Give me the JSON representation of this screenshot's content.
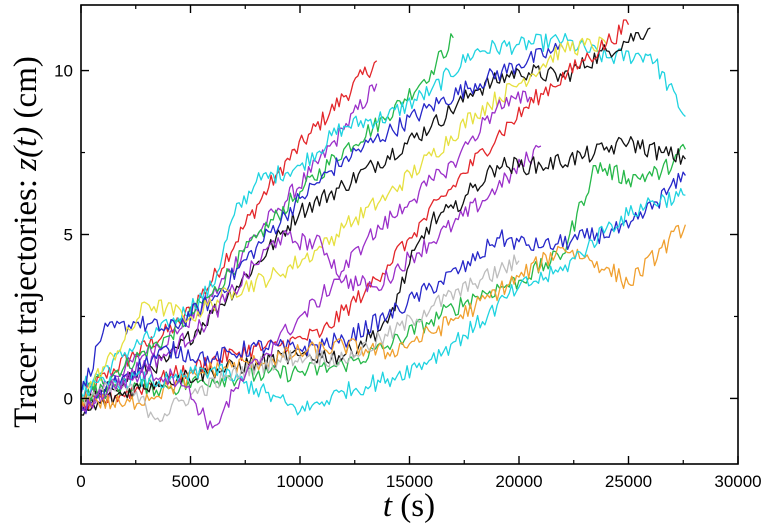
{
  "chart_data": {
    "type": "line",
    "title": "",
    "xlabel": {
      "pre": "",
      "var": "t",
      "post": " (s)"
    },
    "ylabel": {
      "pre": "Tracer trajectories: ",
      "var": "z(t)",
      "post": "  (cm)"
    },
    "xlim": [
      0,
      30000
    ],
    "ylim": [
      -2,
      12
    ],
    "xticks": [
      0,
      5000,
      10000,
      15000,
      20000,
      25000,
      30000
    ],
    "xtick_labels": [
      "0",
      "5000",
      "10000",
      "15000",
      "20000",
      "25000",
      "30000"
    ],
    "yticks": [
      0,
      5,
      10
    ],
    "ytick_labels": [
      "0",
      "5",
      "10"
    ],
    "grid": false,
    "legend": "none",
    "series": [
      {
        "color": "#e3262a",
        "points": [
          [
            0,
            0
          ],
          [
            1500,
            0.9
          ],
          [
            3000,
            1.6
          ],
          [
            4500,
            2.3
          ],
          [
            6000,
            3.6
          ],
          [
            7500,
            5.3
          ],
          [
            9000,
            6.9
          ],
          [
            10500,
            8.1
          ],
          [
            12000,
            9.2
          ],
          [
            13500,
            10.3
          ]
        ]
      },
      {
        "color": "#9b30c9",
        "points": [
          [
            0,
            -0.2
          ],
          [
            1500,
            0.7
          ],
          [
            3000,
            1.4
          ],
          [
            4500,
            2.1
          ],
          [
            6000,
            3.1
          ],
          [
            7500,
            4.6
          ],
          [
            9000,
            5.8
          ],
          [
            10500,
            6.9
          ],
          [
            12000,
            8.2
          ],
          [
            13500,
            9.6
          ]
        ]
      },
      {
        "color": "#27b84a",
        "points": [
          [
            0,
            0.2
          ],
          [
            2000,
            1
          ],
          [
            4000,
            1.9
          ],
          [
            6000,
            3.2
          ],
          [
            8000,
            4.9
          ],
          [
            10000,
            6.3
          ],
          [
            12000,
            7.6
          ],
          [
            14000,
            8.6
          ],
          [
            16000,
            10
          ],
          [
            17000,
            11
          ]
        ]
      },
      {
        "color": "#20d3e0",
        "points": [
          [
            0,
            0.3
          ],
          [
            2000,
            1.4
          ],
          [
            4000,
            2.2
          ],
          [
            6000,
            3.4
          ],
          [
            7000,
            5.6
          ],
          [
            8000,
            6.6
          ],
          [
            10000,
            7.1
          ],
          [
            12000,
            8.3
          ],
          [
            14000,
            8.6
          ],
          [
            16000,
            9.4
          ],
          [
            18000,
            10.6
          ],
          [
            20000,
            10.8
          ],
          [
            22000,
            10.9
          ],
          [
            24000,
            10.4
          ],
          [
            26000,
            10.5
          ],
          [
            27600,
            8.6
          ]
        ]
      },
      {
        "color": "#111111",
        "points": [
          [
            0,
            -0.3
          ],
          [
            2000,
            0.6
          ],
          [
            4000,
            1.2
          ],
          [
            6000,
            2.6
          ],
          [
            8000,
            4.1
          ],
          [
            10000,
            5.7
          ],
          [
            12000,
            6.5
          ],
          [
            14000,
            7.4
          ],
          [
            16000,
            8.3
          ],
          [
            18000,
            9.4
          ],
          [
            20000,
            10
          ],
          [
            22000,
            9.8
          ],
          [
            24000,
            10.6
          ],
          [
            26000,
            11.3
          ]
        ]
      },
      {
        "color": "#2727c9",
        "points": [
          [
            0,
            0.1
          ],
          [
            1000,
            2
          ],
          [
            2500,
            2.3
          ],
          [
            4000,
            2.1
          ],
          [
            6000,
            3
          ],
          [
            8000,
            4.6
          ],
          [
            10000,
            6.1
          ],
          [
            12000,
            7.3
          ],
          [
            14000,
            8.1
          ],
          [
            16000,
            8.9
          ],
          [
            18000,
            9.6
          ],
          [
            20000,
            10.2
          ],
          [
            22000,
            10.7
          ]
        ]
      },
      {
        "color": "#e6e040",
        "points": [
          [
            0,
            0
          ],
          [
            2000,
            1.8
          ],
          [
            3000,
            2.9
          ],
          [
            5000,
            2.5
          ],
          [
            7000,
            3.3
          ],
          [
            9000,
            3.8
          ],
          [
            11000,
            4.6
          ],
          [
            12000,
            5.2
          ],
          [
            14000,
            6.2
          ],
          [
            16000,
            7.4
          ],
          [
            18000,
            8.7
          ],
          [
            20000,
            9.6
          ],
          [
            22000,
            10.7
          ],
          [
            24000,
            10.8
          ]
        ]
      },
      {
        "color": "#e3262a",
        "points": [
          [
            0,
            -0.3
          ],
          [
            3000,
            0.4
          ],
          [
            5000,
            0.9
          ],
          [
            7000,
            1.4
          ],
          [
            9000,
            1.6
          ],
          [
            11000,
            2
          ],
          [
            13000,
            3.3
          ],
          [
            15000,
            4.9
          ],
          [
            17000,
            6.5
          ],
          [
            19000,
            8
          ],
          [
            21000,
            9.3
          ],
          [
            23000,
            10.3
          ],
          [
            25000,
            11.4
          ]
        ]
      },
      {
        "color": "#9b30c9",
        "points": [
          [
            0,
            -0.4
          ],
          [
            2000,
            0.7
          ],
          [
            4000,
            1.4
          ],
          [
            5500,
            2.2
          ],
          [
            7000,
            3.3
          ],
          [
            9000,
            4.9
          ],
          [
            11000,
            4.7
          ],
          [
            12000,
            3.6
          ],
          [
            13500,
            3.4
          ],
          [
            15000,
            4.3
          ],
          [
            17000,
            5.3
          ],
          [
            19000,
            6.4
          ],
          [
            21000,
            7.7
          ]
        ]
      },
      {
        "color": "#27b84a",
        "points": [
          [
            0,
            0.1
          ],
          [
            2000,
            0.4
          ],
          [
            4000,
            0.3
          ],
          [
            6000,
            0.6
          ],
          [
            8000,
            0.7
          ],
          [
            10000,
            0.8
          ],
          [
            12000,
            1
          ],
          [
            14000,
            1.6
          ],
          [
            16000,
            2.4
          ],
          [
            18000,
            3.1
          ],
          [
            20000,
            3.6
          ],
          [
            22000,
            4.4
          ],
          [
            23500,
            7.1
          ],
          [
            25000,
            6.7
          ],
          [
            26500,
            6.9
          ],
          [
            27600,
            7.6
          ]
        ]
      },
      {
        "color": "#111111",
        "points": [
          [
            0,
            -0.5
          ],
          [
            2000,
            0.2
          ],
          [
            4000,
            0.6
          ],
          [
            6000,
            0.8
          ],
          [
            8000,
            1.1
          ],
          [
            10000,
            1.3
          ],
          [
            12000,
            1.3
          ],
          [
            14000,
            2.3
          ],
          [
            15000,
            4.1
          ],
          [
            16000,
            5.4
          ],
          [
            17000,
            5.8
          ],
          [
            19000,
            7.1
          ],
          [
            21000,
            7.1
          ],
          [
            23000,
            7.4
          ],
          [
            25000,
            7.8
          ],
          [
            26500,
            7.5
          ],
          [
            27600,
            7.3
          ]
        ]
      },
      {
        "color": "#2727c9",
        "points": [
          [
            0,
            -0.4
          ],
          [
            2000,
            0.7
          ],
          [
            4000,
            1.5
          ],
          [
            6000,
            1.2
          ],
          [
            8000,
            1.6
          ],
          [
            10000,
            1.5
          ],
          [
            12000,
            1.8
          ],
          [
            14000,
            2.5
          ],
          [
            16000,
            3.4
          ],
          [
            18000,
            4.2
          ],
          [
            19000,
            4.9
          ],
          [
            21000,
            4.6
          ],
          [
            23000,
            4.9
          ],
          [
            25000,
            5.2
          ],
          [
            27600,
            6.8
          ]
        ]
      },
      {
        "color": "#f0a030",
        "points": [
          [
            0,
            0
          ],
          [
            2000,
            -0.2
          ],
          [
            4000,
            0.3
          ],
          [
            6000,
            0.9
          ],
          [
            8000,
            1.1
          ],
          [
            10000,
            1.4
          ],
          [
            12000,
            1.6
          ],
          [
            14000,
            1.4
          ],
          [
            16000,
            2
          ],
          [
            18000,
            2.8
          ],
          [
            20000,
            3.7
          ],
          [
            22000,
            4.6
          ],
          [
            24000,
            4
          ],
          [
            25000,
            3.5
          ],
          [
            27600,
            5.3
          ]
        ]
      },
      {
        "color": "#20d3e0",
        "points": [
          [
            0,
            0.2
          ],
          [
            2000,
            0.6
          ],
          [
            4000,
            0.5
          ],
          [
            6000,
            0.9
          ],
          [
            8000,
            0.3
          ],
          [
            10000,
            -0.4
          ],
          [
            12000,
            0.2
          ],
          [
            14000,
            0.6
          ],
          [
            16000,
            1.2
          ],
          [
            18000,
            2.2
          ],
          [
            20000,
            3.4
          ],
          [
            22000,
            3.9
          ],
          [
            24000,
            5.2
          ],
          [
            26000,
            6
          ],
          [
            27600,
            6.2
          ]
        ]
      },
      {
        "color": "#bdbdbd",
        "points": [
          [
            0,
            0
          ],
          [
            2000,
            0.4
          ],
          [
            3500,
            -0.6
          ],
          [
            5000,
            0.1
          ],
          [
            6500,
            0.6
          ],
          [
            8000,
            1
          ],
          [
            10000,
            1.3
          ],
          [
            12000,
            1.2
          ],
          [
            14000,
            1.9
          ],
          [
            16000,
            2.8
          ],
          [
            18000,
            3.5
          ],
          [
            20000,
            4.2
          ]
        ]
      },
      {
        "color": "#9b30c9",
        "points": [
          [
            0,
            -0.3
          ],
          [
            1500,
            0.4
          ],
          [
            3000,
            0.8
          ],
          [
            4500,
            0.6
          ],
          [
            6000,
            -0.9
          ],
          [
            7500,
            0.7
          ],
          [
            9000,
            1.8
          ],
          [
            11000,
            3.1
          ],
          [
            13000,
            4.8
          ],
          [
            15000,
            6
          ],
          [
            17000,
            7.2
          ],
          [
            19000,
            8.9
          ],
          [
            20500,
            9.2
          ]
        ]
      }
    ]
  }
}
